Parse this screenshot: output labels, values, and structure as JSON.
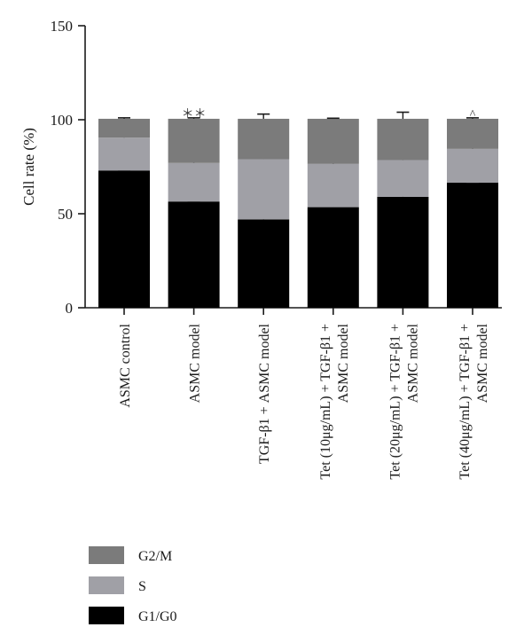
{
  "chart_data": {
    "type": "bar",
    "stacked": true,
    "ylabel": "Cell rate (%)",
    "xlabel": "",
    "ylim": [
      0,
      150
    ],
    "yticks": [
      0,
      50,
      100,
      150
    ],
    "grid": false,
    "legend_position": "bottom-left",
    "categories": [
      [
        "ASMC control"
      ],
      [
        "ASMC model"
      ],
      [
        "TGF-β1 + ASMC model"
      ],
      [
        "Tet (10μg/mL) + TGF-β1 +",
        "ASMC model"
      ],
      [
        "Tet (20μg/mL) + TGF-β1 +",
        "ASMC model"
      ],
      [
        "Tet (40μg/mL) + TGF-β1 +",
        "ASMC model"
      ]
    ],
    "series": [
      {
        "name": "G1/G0",
        "color": "#000000",
        "values": [
          73,
          56.5,
          47,
          53.5,
          59,
          66.5
        ],
        "errors": [
          0,
          0,
          3,
          1.5,
          1.5,
          0
        ],
        "markers": [
          "",
          "＊＊",
          "##",
          "^^",
          "^^",
          "^^"
        ]
      },
      {
        "name": "S",
        "color": "#a0a0a6",
        "values": [
          17.5,
          20.5,
          32,
          23,
          19.5,
          18
        ],
        "errors": [
          1,
          0.5,
          0.5,
          1.5,
          1.5,
          1
        ],
        "markers": [
          "",
          "＊＊",
          "##",
          "^^",
          "^^",
          "^^"
        ]
      },
      {
        "name": "G2/M",
        "color": "#7b7b7b",
        "values": [
          10,
          23.5,
          21.5,
          24,
          22,
          16
        ],
        "errors": [
          0.5,
          0.5,
          2.5,
          0.3,
          3.5,
          0.5
        ],
        "markers": [
          "",
          "＊＊",
          "",
          "",
          "",
          "^"
        ]
      }
    ]
  }
}
